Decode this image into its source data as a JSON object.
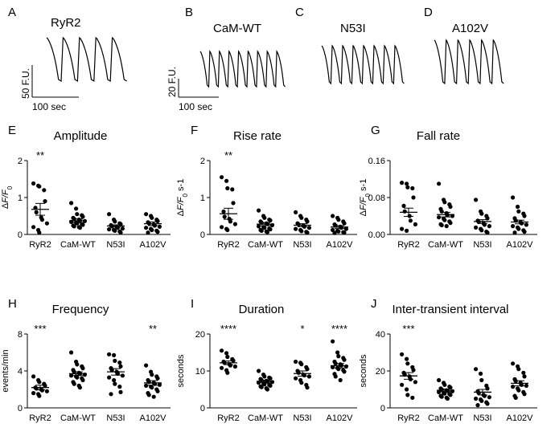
{
  "colors": {
    "ink": "#000000",
    "background": "#ffffff"
  },
  "traces": [
    {
      "letter": "A",
      "title": "RyR2",
      "n_peaks": 5,
      "scalebar_y": "50 F.U.",
      "scalebar_x": "100 sec"
    },
    {
      "letter": "B",
      "title": "CaM-WT",
      "n_peaks": 9,
      "scalebar_y": "20 F.U.",
      "scalebar_x": "100 sec"
    },
    {
      "letter": "C",
      "title": "N53I",
      "n_peaks": 8
    },
    {
      "letter": "D",
      "title": "A102V",
      "n_peaks": 6
    }
  ],
  "chart_data": [
    {
      "letter": "E",
      "type": "scatter",
      "title": "Amplitude",
      "ylabel": "ΔF/F0",
      "ylabel_main": "Δ",
      "ylabel_italic": "F/F",
      "ylabel_sub": "0",
      "ylabel_sup": "",
      "ylim": [
        0,
        2
      ],
      "yticks": [
        "0",
        "1",
        "2"
      ],
      "ytick_values": [
        0,
        1,
        2
      ],
      "categories": [
        "RyR2",
        "CaM-WT",
        "N53I",
        "A102V"
      ],
      "stars": [
        "**",
        "",
        "",
        ""
      ],
      "means": [
        0.68,
        0.37,
        0.23,
        0.29
      ],
      "sems": [
        0.16,
        0.05,
        0.03,
        0.05
      ],
      "series": [
        [
          1.38,
          1.32,
          1.3,
          1.2,
          0.9,
          0.72,
          0.6,
          0.46,
          0.4,
          0.3,
          0.2,
          0.12,
          0.05
        ],
        [
          0.85,
          0.7,
          0.55,
          0.52,
          0.48,
          0.45,
          0.42,
          0.4,
          0.38,
          0.36,
          0.34,
          0.32,
          0.3,
          0.28,
          0.26,
          0.24,
          0.22,
          0.2,
          0.18
        ],
        [
          0.55,
          0.4,
          0.35,
          0.3,
          0.28,
          0.25,
          0.22,
          0.2,
          0.18,
          0.16,
          0.14,
          0.12,
          0.1,
          0.08,
          0.05
        ],
        [
          0.55,
          0.5,
          0.45,
          0.4,
          0.36,
          0.33,
          0.3,
          0.27,
          0.24,
          0.21,
          0.18,
          0.15,
          0.12,
          0.1,
          0.07,
          0.05
        ]
      ]
    },
    {
      "letter": "F",
      "type": "scatter",
      "title": "Rise rate",
      "ylabel": "ΔF/F0 s-1",
      "ylabel_main": "Δ",
      "ylabel_italic": "F/F",
      "ylabel_sub": "0",
      "ylabel_sup": " s-1",
      "ylim": [
        0,
        2
      ],
      "yticks": [
        "0",
        "1",
        "2"
      ],
      "ytick_values": [
        0,
        1,
        2
      ],
      "categories": [
        "RyR2",
        "CaM-WT",
        "N53I",
        "A102V"
      ],
      "stars": [
        "**",
        "",
        "",
        ""
      ],
      "means": [
        0.56,
        0.28,
        0.25,
        0.2
      ],
      "sems": [
        0.15,
        0.04,
        0.04,
        0.04
      ],
      "series": [
        [
          1.55,
          1.45,
          1.25,
          1.22,
          0.85,
          0.62,
          0.48,
          0.42,
          0.35,
          0.28,
          0.2,
          0.15,
          0.12
        ],
        [
          0.65,
          0.5,
          0.45,
          0.4,
          0.38,
          0.35,
          0.32,
          0.3,
          0.28,
          0.25,
          0.22,
          0.2,
          0.18,
          0.16,
          0.14,
          0.12,
          0.1,
          0.08,
          0.06
        ],
        [
          0.6,
          0.5,
          0.45,
          0.4,
          0.35,
          0.3,
          0.27,
          0.24,
          0.21,
          0.18,
          0.15,
          0.12,
          0.09,
          0.07,
          0.05
        ],
        [
          0.5,
          0.45,
          0.4,
          0.35,
          0.3,
          0.27,
          0.24,
          0.21,
          0.18,
          0.15,
          0.12,
          0.1,
          0.08,
          0.06,
          0.05,
          0.04
        ]
      ]
    },
    {
      "letter": "G",
      "type": "scatter",
      "title": "Fall rate",
      "ylabel": "ΔF/F0 s-1",
      "ylabel_main": "Δ",
      "ylabel_italic": "F/F",
      "ylabel_sub": "0",
      "ylabel_sup": " s-1",
      "ylim": [
        0,
        0.16
      ],
      "yticks": [
        "0.00",
        "0.08",
        "0.16"
      ],
      "ytick_values": [
        0,
        0.08,
        0.16
      ],
      "categories": [
        "RyR2",
        "CaM-WT",
        "N53I",
        "A102V"
      ],
      "stars": [
        "",
        "",
        "",
        ""
      ],
      "means": [
        0.048,
        0.043,
        0.028,
        0.027
      ],
      "sems": [
        0.009,
        0.005,
        0.004,
        0.004
      ],
      "series": [
        [
          0.112,
          0.11,
          0.102,
          0.1,
          0.08,
          0.062,
          0.05,
          0.04,
          0.03,
          0.022,
          0.012,
          0.008
        ],
        [
          0.11,
          0.075,
          0.07,
          0.065,
          0.06,
          0.055,
          0.05,
          0.046,
          0.042,
          0.04,
          0.037,
          0.034,
          0.031,
          0.028,
          0.025,
          0.022,
          0.02,
          0.018
        ],
        [
          0.075,
          0.05,
          0.045,
          0.04,
          0.035,
          0.03,
          0.027,
          0.024,
          0.021,
          0.018,
          0.015,
          0.012,
          0.009,
          0.006,
          0.004
        ],
        [
          0.08,
          0.06,
          0.05,
          0.045,
          0.04,
          0.035,
          0.03,
          0.027,
          0.024,
          0.021,
          0.018,
          0.015,
          0.012,
          0.009,
          0.006,
          0.004
        ]
      ]
    },
    {
      "letter": "H",
      "type": "scatter",
      "title": "Frequency",
      "ylabel": "events/min",
      "ylabel_main": "events/min",
      "ylabel_italic": "",
      "ylabel_sub": "",
      "ylabel_sup": "",
      "ylim": [
        0,
        8
      ],
      "yticks": [
        "0",
        "4",
        "8"
      ],
      "ytick_values": [
        0,
        4,
        8
      ],
      "categories": [
        "RyR2",
        "CaM-WT",
        "N53I",
        "A102V"
      ],
      "stars": [
        "***",
        "",
        "",
        "**"
      ],
      "means": [
        2.2,
        3.7,
        3.9,
        2.7
      ],
      "sems": [
        0.25,
        0.2,
        0.35,
        0.25
      ],
      "series": [
        [
          3.4,
          3.0,
          2.8,
          2.6,
          2.4,
          2.2,
          2.1,
          2.0,
          1.9,
          1.8,
          1.6,
          1.5,
          1.3
        ],
        [
          6.0,
          5.0,
          4.7,
          4.5,
          4.3,
          4.1,
          3.9,
          3.8,
          3.7,
          3.6,
          3.5,
          3.4,
          3.3,
          3.2,
          3.0,
          2.8,
          2.6,
          2.4,
          2.2
        ],
        [
          5.8,
          5.7,
          5.1,
          4.9,
          4.5,
          4.3,
          4.1,
          3.9,
          3.7,
          3.5,
          3.3,
          3.0,
          2.6,
          2.3,
          1.7,
          1.5
        ],
        [
          4.6,
          3.9,
          3.6,
          3.4,
          3.2,
          3.0,
          2.8,
          2.7,
          2.6,
          2.5,
          2.4,
          2.3,
          2.2,
          2.0,
          1.8,
          1.6,
          1.4,
          1.2
        ]
      ]
    },
    {
      "letter": "I",
      "type": "scatter",
      "title": "Duration",
      "ylabel": "seconds",
      "ylabel_main": "seconds",
      "ylabel_italic": "",
      "ylabel_sub": "",
      "ylabel_sup": "",
      "ylim": [
        0,
        20
      ],
      "yticks": [
        "0",
        "10",
        "20"
      ],
      "ytick_values": [
        0,
        10,
        20
      ],
      "categories": [
        "RyR2",
        "CaM-WT",
        "N53I",
        "A102V"
      ],
      "stars": [
        "****",
        "",
        "*",
        "****"
      ],
      "means": [
        12.2,
        7.2,
        9.3,
        11.4
      ],
      "sems": [
        0.5,
        0.3,
        0.7,
        0.6
      ],
      "series": [
        [
          15.5,
          14.8,
          13.8,
          13.2,
          12.8,
          12.5,
          12.2,
          11.8,
          11.5,
          11.2,
          10.8,
          10.2,
          9.5
        ],
        [
          10.0,
          9.0,
          8.5,
          8.2,
          8.0,
          7.8,
          7.5,
          7.3,
          7.1,
          7.0,
          6.8,
          6.6,
          6.4,
          6.2,
          6.0,
          5.8,
          5.6,
          5.3,
          5.0
        ],
        [
          12.5,
          12.2,
          11.8,
          11.0,
          10.5,
          10.0,
          9.5,
          9.0,
          8.8,
          8.5,
          8.0,
          7.5,
          6.8,
          6.2,
          5.5
        ],
        [
          18.0,
          15.0,
          14.0,
          13.5,
          13.0,
          12.5,
          12.0,
          11.8,
          11.5,
          11.2,
          11.0,
          10.8,
          10.5,
          10.2,
          9.8,
          9.2,
          8.5,
          7.5
        ]
      ]
    },
    {
      "letter": "J",
      "type": "scatter",
      "title": "Inter-transient interval",
      "ylabel": "seconds",
      "ylabel_main": "seconds",
      "ylabel_italic": "",
      "ylabel_sub": "",
      "ylabel_sup": "",
      "ylim": [
        0,
        40
      ],
      "yticks": [
        "0",
        "20",
        "40"
      ],
      "ytick_values": [
        0,
        20,
        40
      ],
      "categories": [
        "RyR2",
        "CaM-WT",
        "N53I",
        "A102V"
      ],
      "stars": [
        "***",
        "",
        "",
        ""
      ],
      "means": [
        17.3,
        9.5,
        8.5,
        13.3
      ],
      "sems": [
        1.8,
        0.7,
        1.5,
        1.4
      ],
      "series": [
        [
          29.0,
          26.5,
          24.0,
          22.0,
          20.5,
          19.0,
          18.0,
          17.0,
          15.5,
          14.0,
          12.5,
          10.0,
          7.0,
          5.5
        ],
        [
          15.0,
          13.5,
          12.5,
          11.5,
          11.0,
          10.5,
          10.0,
          9.5,
          9.2,
          9.0,
          8.5,
          8.0,
          7.8,
          7.5,
          7.0,
          6.5,
          6.0,
          5.5,
          5.0
        ],
        [
          21.0,
          18.5,
          15.0,
          12.0,
          10.5,
          9.0,
          8.0,
          7.0,
          6.5,
          5.8,
          5.0,
          4.5,
          3.8,
          3.0,
          2.2,
          1.5
        ],
        [
          24.0,
          22.5,
          21.0,
          19.0,
          17.0,
          15.5,
          14.5,
          13.5,
          12.5,
          12.0,
          11.5,
          10.5,
          9.5,
          8.5,
          7.5,
          6.5,
          5.5
        ]
      ]
    }
  ]
}
